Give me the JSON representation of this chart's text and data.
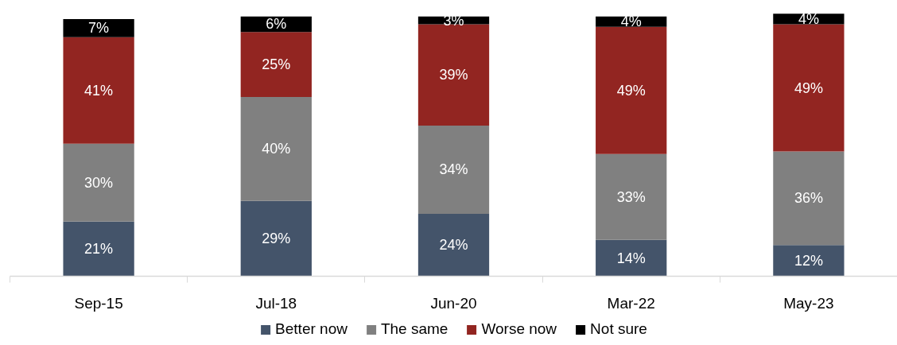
{
  "chart_data": {
    "type": "bar",
    "stacked": true,
    "categories": [
      "Sep-15",
      "Jul-18",
      "Jun-20",
      "Mar-22",
      "May-23"
    ],
    "series": [
      {
        "name": "Better now",
        "color": "#44546a",
        "values": [
          21,
          29,
          24,
          14,
          12
        ],
        "value_labels": [
          "21%",
          "29%",
          "24%",
          "14%",
          "12%"
        ]
      },
      {
        "name": "The same",
        "color": "#808080",
        "values": [
          30,
          40,
          34,
          33,
          36
        ],
        "value_labels": [
          "30%",
          "40%",
          "34%",
          "33%",
          "36%"
        ]
      },
      {
        "name": "Worse now",
        "color": "#922521",
        "values": [
          41,
          25,
          39,
          49,
          49
        ],
        "value_labels": [
          "41%",
          "25%",
          "39%",
          "49%",
          "49%"
        ]
      },
      {
        "name": "Not sure",
        "color": "#000000",
        "values": [
          7,
          6,
          3,
          4,
          4
        ],
        "value_labels": [
          "7%",
          "6%",
          "3%",
          "4%",
          "4%"
        ]
      }
    ],
    "tick_labels": "x",
    "legend": "bottom"
  }
}
